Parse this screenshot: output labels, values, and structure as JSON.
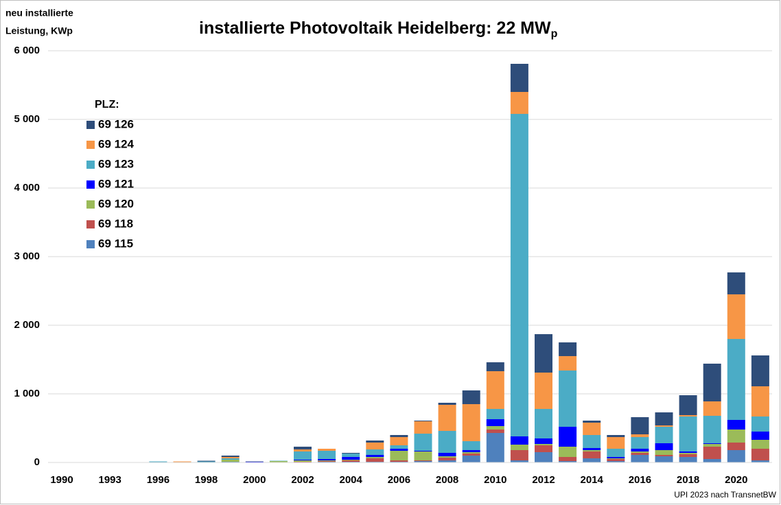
{
  "chart_data": {
    "type": "bar",
    "stacked": true,
    "title": {
      "text": "installierte Photovoltaik Heidelberg: 22 MW",
      "sub": "p"
    },
    "ylabel": [
      "neu installierte",
      "Leistung, KWp"
    ],
    "legend_title": "PLZ:",
    "source": "UPI 2023 nach TransnetBW",
    "categories": [
      "1990",
      null,
      "1993",
      null,
      "1996",
      null,
      "1998",
      null,
      "2000",
      null,
      "2002",
      null,
      "2004",
      null,
      "2006",
      null,
      "2008",
      null,
      "2010",
      null,
      "2012",
      null,
      "2014",
      null,
      "2016",
      null,
      "2018",
      null,
      "2020",
      null
    ],
    "ylim": [
      0,
      6000
    ],
    "yticks": [
      0,
      {
        "value": 1000,
        "label": "1 000"
      },
      {
        "value": 2000,
        "label": "2 000"
      },
      {
        "value": 3000,
        "label": "3 000"
      },
      {
        "value": 4000,
        "label": "4 000"
      },
      {
        "value": 5000,
        "label": "5 000"
      },
      {
        "value": 6000,
        "label": "6 000"
      }
    ],
    "grid": true,
    "legend": "upper left",
    "series": [
      {
        "name": "69 126",
        "color": "#2e4d7a",
        "values": [
          0,
          0,
          0,
          0,
          0,
          0,
          10,
          20,
          5,
          0,
          40,
          0,
          10,
          30,
          30,
          10,
          30,
          200,
          130,
          410,
          560,
          200,
          30,
          30,
          250,
          190,
          290,
          550,
          320,
          450
        ]
      },
      {
        "name": "69 124",
        "color": "#f79646",
        "values": [
          0,
          0,
          0,
          0,
          0,
          15,
          0,
          20,
          0,
          0,
          30,
          30,
          0,
          100,
          120,
          180,
          380,
          540,
          550,
          320,
          530,
          210,
          180,
          170,
          40,
          20,
          20,
          210,
          650,
          440
        ]
      },
      {
        "name": "69 123",
        "color": "#4bacc6",
        "values": [
          2,
          5,
          5,
          5,
          15,
          0,
          15,
          20,
          0,
          5,
          120,
          120,
          50,
          80,
          50,
          250,
          320,
          130,
          150,
          4700,
          430,
          820,
          190,
          120,
          170,
          240,
          510,
          400,
          1180,
          220
        ]
      },
      {
        "name": "69 121",
        "color": "#0000ff",
        "values": [
          0,
          0,
          0,
          0,
          0,
          0,
          0,
          0,
          10,
          0,
          10,
          20,
          40,
          30,
          30,
          10,
          50,
          30,
          100,
          120,
          80,
          290,
          30,
          20,
          40,
          100,
          20,
          10,
          140,
          120
        ]
      },
      {
        "name": "69 120",
        "color": "#9bbb59",
        "values": [
          0,
          0,
          0,
          0,
          0,
          0,
          0,
          30,
          0,
          20,
          20,
          10,
          10,
          20,
          140,
          130,
          20,
          20,
          50,
          80,
          20,
          150,
          20,
          10,
          20,
          70,
          20,
          40,
          190,
          130
        ]
      },
      {
        "name": "69 118",
        "color": "#c0504d",
        "values": [
          0,
          0,
          0,
          0,
          0,
          0,
          0,
          0,
          0,
          0,
          10,
          10,
          20,
          50,
          20,
          10,
          40,
          30,
          50,
          150,
          100,
          60,
          100,
          30,
          30,
          20,
          40,
          180,
          110,
          170
        ]
      },
      {
        "name": "69 115",
        "color": "#4f81bd",
        "values": [
          0,
          0,
          0,
          0,
          0,
          0,
          0,
          10,
          0,
          0,
          0,
          10,
          10,
          10,
          10,
          20,
          30,
          100,
          430,
          30,
          150,
          20,
          60,
          20,
          110,
          90,
          80,
          50,
          180,
          30
        ]
      }
    ]
  }
}
